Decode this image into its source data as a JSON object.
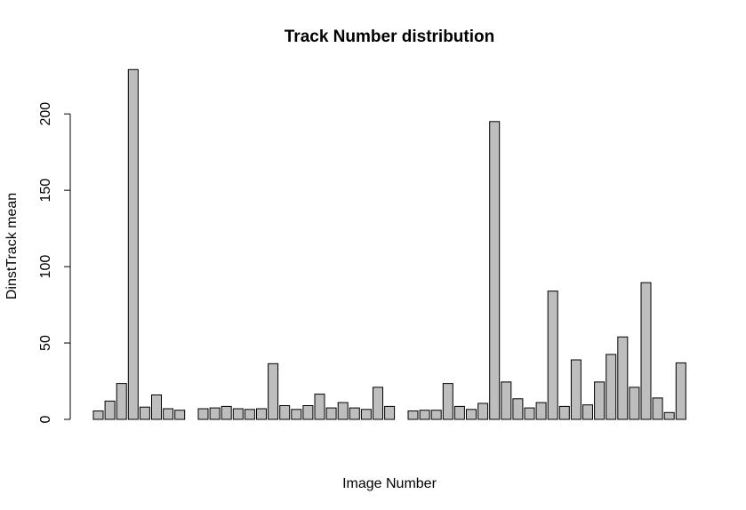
{
  "chart_data": {
    "type": "bar",
    "title": "Track Number distribution",
    "xlabel": "Image Number",
    "ylabel": "DinstTrack mean",
    "ylim": [
      0,
      230
    ],
    "yticks": [
      0,
      50,
      100,
      150,
      200
    ],
    "bar_color": "#bebebe",
    "groups": [
      {
        "values": [
          5.5,
          12,
          23.5,
          229,
          8,
          16,
          7,
          6
        ]
      },
      {
        "values": [
          7,
          7.5,
          8.5,
          7,
          6.5,
          7,
          36.5,
          9,
          6.5,
          9,
          16.5,
          7.5,
          11,
          7.5,
          6.5,
          21,
          8.5
        ]
      },
      {
        "values": [
          5.5,
          6,
          6,
          23.5,
          8.5,
          6.5,
          10.5,
          195,
          24.5,
          13.5,
          7.5,
          11,
          84,
          8.5,
          39,
          9.5,
          24.5,
          42.5,
          54,
          21,
          89.5,
          14,
          4.5,
          37
        ]
      }
    ]
  }
}
